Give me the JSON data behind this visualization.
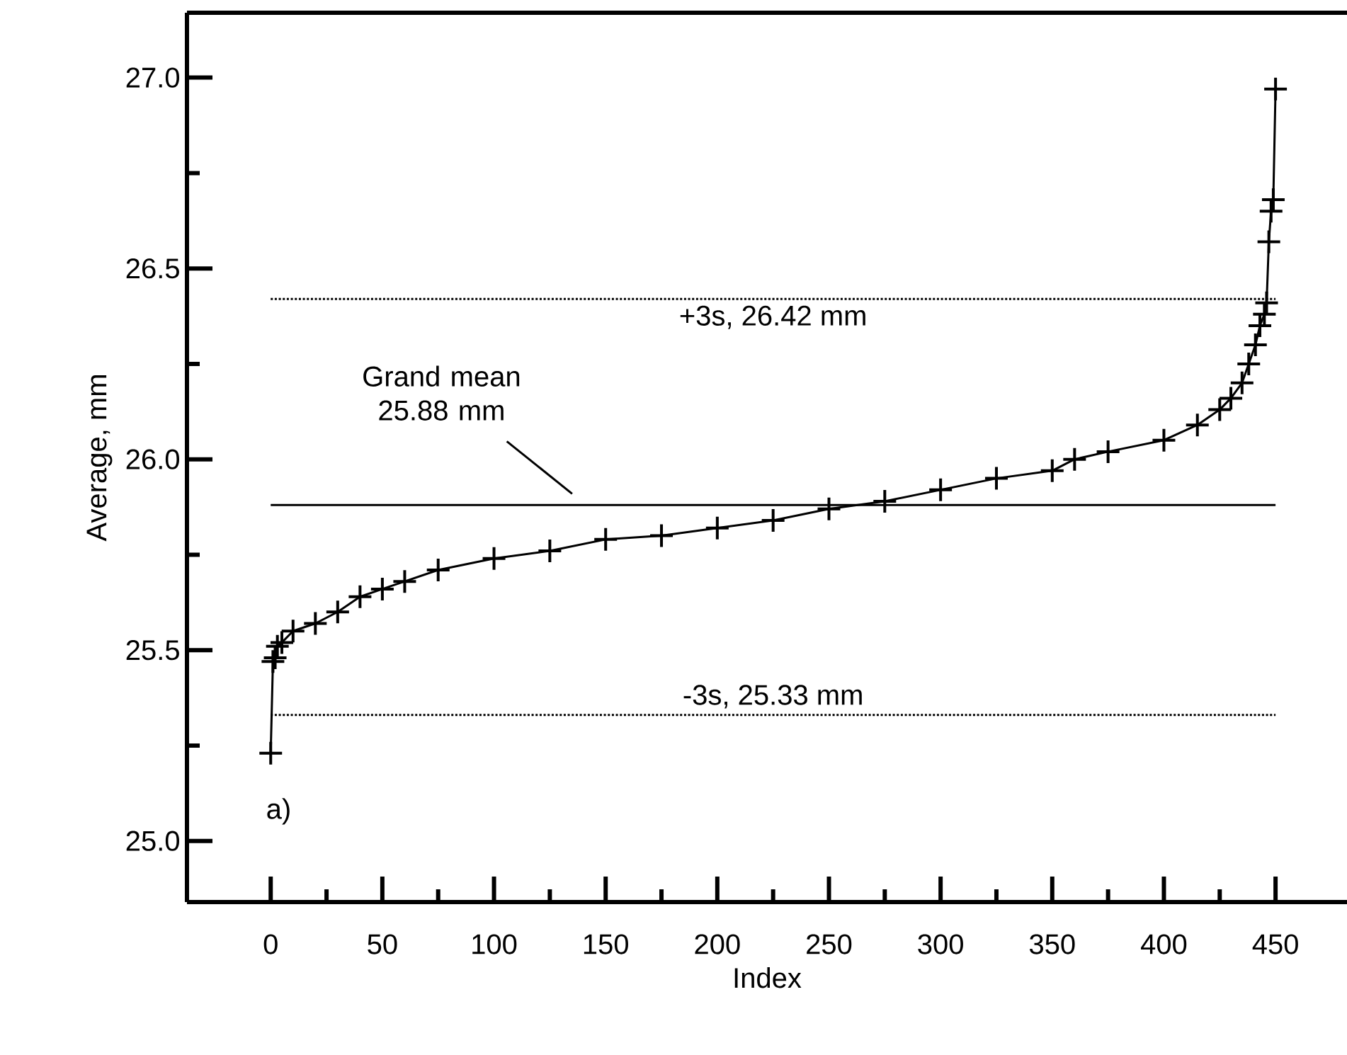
{
  "chart_data": {
    "type": "line",
    "xlabel": "Index",
    "ylabel": "Average, mm",
    "marker": "cross",
    "line_style": "solid",
    "xlim": [
      -37.5,
      482
    ],
    "ylim": [
      24.84,
      27.17
    ],
    "xticks": [
      0,
      50,
      100,
      150,
      200,
      250,
      300,
      350,
      400,
      450
    ],
    "yticks": [
      {
        "value": 25.0,
        "label": "25.0"
      },
      {
        "value": 25.5,
        "label": "25.5"
      },
      {
        "value": 26.0,
        "label": "26.0"
      },
      {
        "value": 26.5,
        "label": "26.5"
      },
      {
        "value": 27.0,
        "label": "27.0"
      }
    ],
    "series": [
      {
        "color": "#000000",
        "x": [
          0,
          1,
          2,
          3,
          5,
          10,
          20,
          30,
          40,
          50,
          60,
          75,
          100,
          125,
          150,
          175,
          200,
          225,
          250,
          275,
          300,
          325,
          350,
          360,
          375,
          400,
          415,
          425,
          430,
          435,
          438,
          441,
          443,
          445,
          446,
          447,
          448,
          449,
          450
        ],
        "values": [
          25.23,
          25.47,
          25.48,
          25.51,
          25.52,
          25.55,
          25.57,
          25.6,
          25.64,
          25.66,
          25.68,
          25.71,
          25.74,
          25.76,
          25.79,
          25.8,
          25.82,
          25.84,
          25.87,
          25.89,
          25.92,
          25.95,
          25.97,
          26.0,
          26.02,
          26.05,
          26.09,
          26.13,
          26.16,
          26.2,
          26.25,
          26.3,
          26.35,
          26.38,
          26.41,
          26.57,
          26.65,
          26.68,
          26.97
        ]
      }
    ],
    "ref_lines": [
      {
        "axis": "y",
        "value": 25.88,
        "label": "Grand mean 25.88 mm",
        "line_style": "solid",
        "color": "#000000"
      },
      {
        "axis": "y",
        "value": 26.42,
        "label": "+3s, 26.42 mm",
        "line_style": "dotted",
        "color": "#000000"
      },
      {
        "axis": "y",
        "value": 25.33,
        "label": "-3s, 25.33 mm",
        "line_style": "dotted",
        "color": "#000000"
      }
    ],
    "annotations": [
      "a)"
    ]
  }
}
